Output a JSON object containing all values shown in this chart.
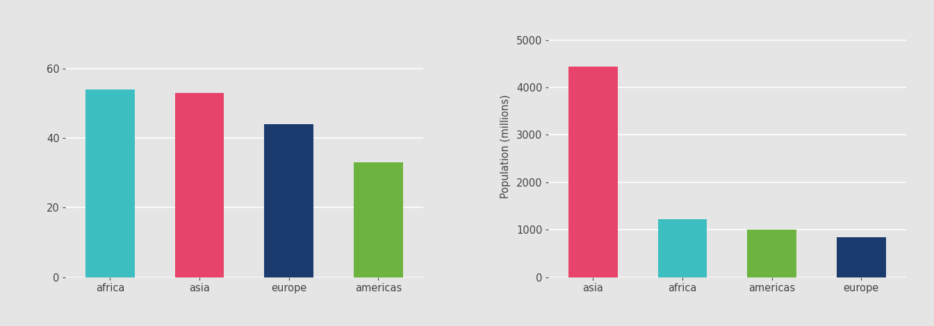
{
  "chart1": {
    "categories": [
      "africa",
      "asia",
      "europe",
      "americas"
    ],
    "values": [
      54,
      53,
      44,
      33
    ],
    "colors": [
      "#3dbec0",
      "#e8436b",
      "#1b3b6f",
      "#6db33f"
    ],
    "ylabel": "",
    "ylim": [
      0,
      75
    ],
    "yticks": [
      0,
      20,
      40,
      60
    ]
  },
  "chart2": {
    "categories": [
      "asia",
      "africa",
      "americas",
      "europe"
    ],
    "values": [
      4436,
      1215,
      1000,
      840
    ],
    "colors": [
      "#e8436b",
      "#3dbec0",
      "#6db33f",
      "#1b3b6f"
    ],
    "ylabel": "Population (millions)",
    "ylim": [
      0,
      5500
    ],
    "yticks": [
      0,
      1000,
      2000,
      3000,
      4000,
      5000
    ]
  },
  "background_color": "#e5e5e5",
  "panel_background": "#e5e5e5",
  "grid_color": "#ffffff",
  "text_color": "#444444",
  "bar_width": 0.55,
  "figsize": [
    13.44,
    4.7
  ],
  "dpi": 100
}
